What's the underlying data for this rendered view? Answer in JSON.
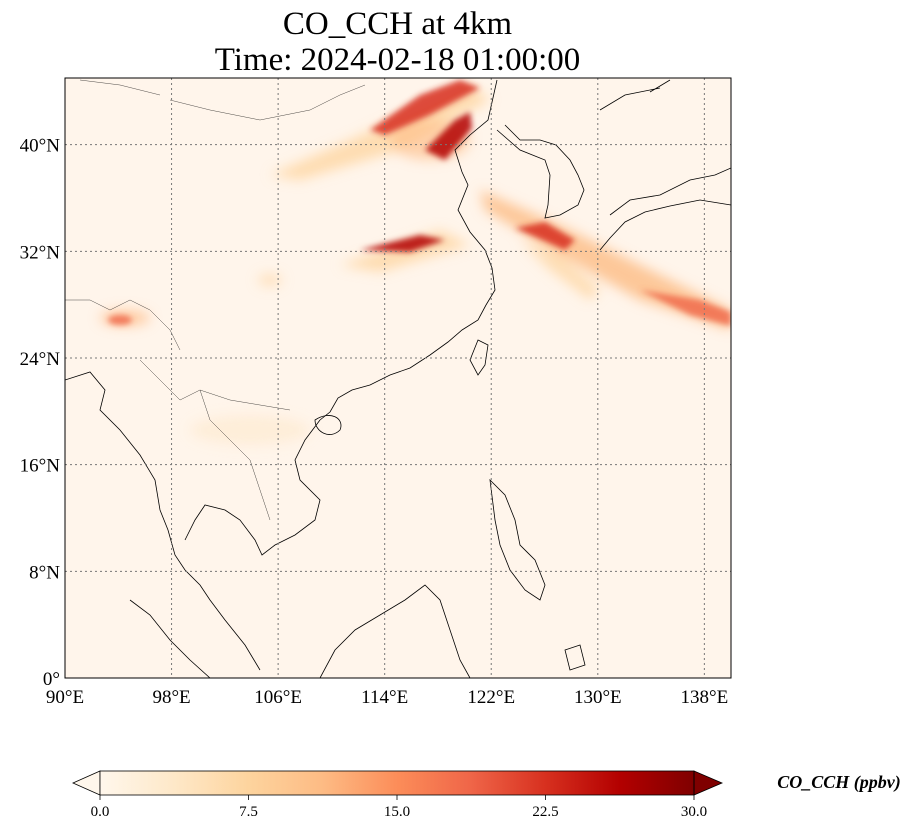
{
  "title": {
    "line1": "CO_CCH at 4km",
    "line2": "Time: 2024-02-18 01:00:00"
  },
  "map": {
    "lon_range": [
      90,
      140
    ],
    "lat_range": [
      0,
      45
    ],
    "lon_ticks": [
      "90°E",
      "98°E",
      "106°E",
      "114°E",
      "122°E",
      "130°E",
      "138°E"
    ],
    "lat_ticks": [
      "0°",
      "8°N",
      "16°N",
      "24°N",
      "32°N",
      "40°N"
    ],
    "background_color": "#fff5eb",
    "gridlines": true,
    "gridline_style": "dotted"
  },
  "colorbar": {
    "label": "CO_CCH (ppbv)",
    "ticks": [
      "0.0",
      "7.5",
      "15.0",
      "22.5",
      "30.0"
    ],
    "range": [
      0,
      30
    ],
    "colormap": "OrRd",
    "colors": [
      "#fff7ec",
      "#fee8c8",
      "#fdd49e",
      "#fdbb84",
      "#fc8d59",
      "#ef6548",
      "#d7301f",
      "#b30000",
      "#7f0000"
    ],
    "extend": "both"
  }
}
